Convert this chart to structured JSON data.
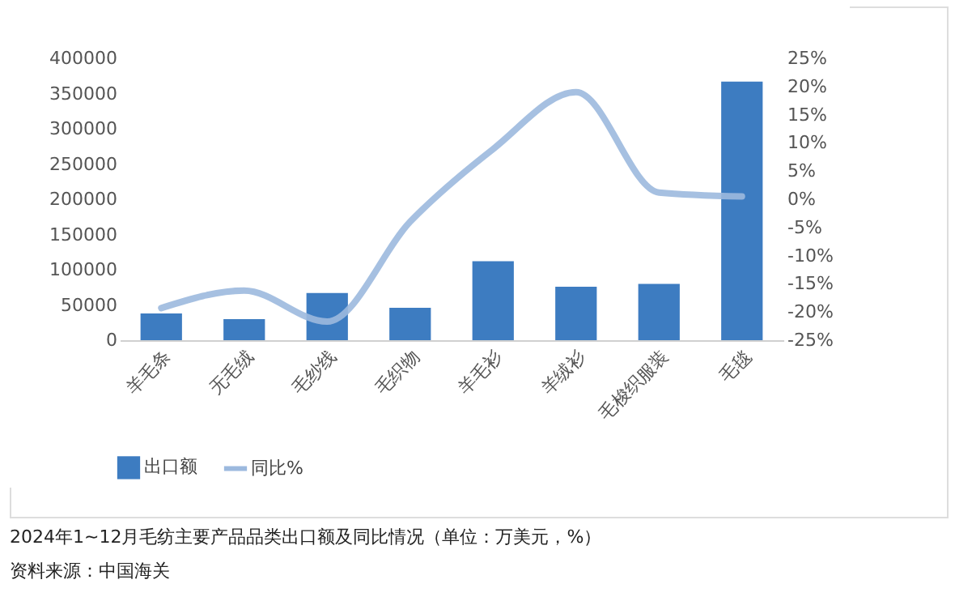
{
  "chart_data": {
    "type": "bar",
    "categories": [
      "羊毛条",
      "无毛绒",
      "毛纱线",
      "毛织物",
      "羊毛衫",
      "羊绒衫",
      "毛梭织服装",
      "毛毯"
    ],
    "series": [
      {
        "name": "出口额",
        "type": "bar",
        "color": "#3d7cc1",
        "values": [
          38000,
          30000,
          67000,
          46000,
          112000,
          76000,
          80000,
          367000
        ]
      },
      {
        "name": "同比%",
        "type": "line",
        "axis": "y2",
        "color": "#9cb9de",
        "values": [
          -19.3,
          -16.2,
          -21.7,
          -4,
          8.9,
          19,
          1.2,
          0.5
        ]
      }
    ],
    "ylim": [
      0,
      400000
    ],
    "yticks": [
      0,
      50000,
      100000,
      150000,
      200000,
      250000,
      300000,
      350000,
      400000
    ],
    "y2lim": [
      -25,
      25
    ],
    "y2ticks": [
      {
        "value": -25,
        "label": "-25%"
      },
      {
        "value": -20,
        "label": "-20%"
      },
      {
        "value": -15,
        "label": "-15%"
      },
      {
        "value": -10,
        "label": "-10%"
      },
      {
        "value": -5,
        "label": "-5%"
      },
      {
        "value": 0,
        "label": "0%"
      },
      {
        "value": 5,
        "label": "5%"
      },
      {
        "value": 10,
        "label": "10%"
      },
      {
        "value": 15,
        "label": "15%"
      },
      {
        "value": 20,
        "label": "20%"
      },
      {
        "value": 25,
        "label": "25%"
      }
    ],
    "legend": "bottom",
    "annotations": [
      "2024年1~12月毛纺主要产品品类出口额及同比情况（单位：万美元，%）",
      "资料来源：中国海关"
    ]
  }
}
